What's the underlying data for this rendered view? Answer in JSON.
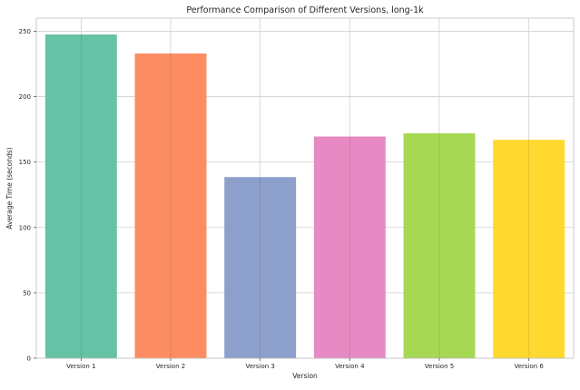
{
  "chart_data": {
    "type": "bar",
    "title": "Performance Comparison of Different Versions, long-1k",
    "xlabel": "Version",
    "ylabel": "Average Time (seconds)",
    "categories": [
      "Version 1",
      "Version 2",
      "Version 3",
      "Version 4",
      "Version 5",
      "Version 6"
    ],
    "values": [
      247.5,
      233,
      138.5,
      169.5,
      172,
      167
    ],
    "colors": [
      "#66c2a5",
      "#fc8d62",
      "#8da0cb",
      "#e78ac3",
      "#a6d854",
      "#ffd92f"
    ],
    "ylim": [
      0,
      260
    ],
    "yticks": [
      "0",
      "50",
      "100",
      "150",
      "200",
      "250"
    ],
    "grid": true,
    "legend": "none"
  }
}
